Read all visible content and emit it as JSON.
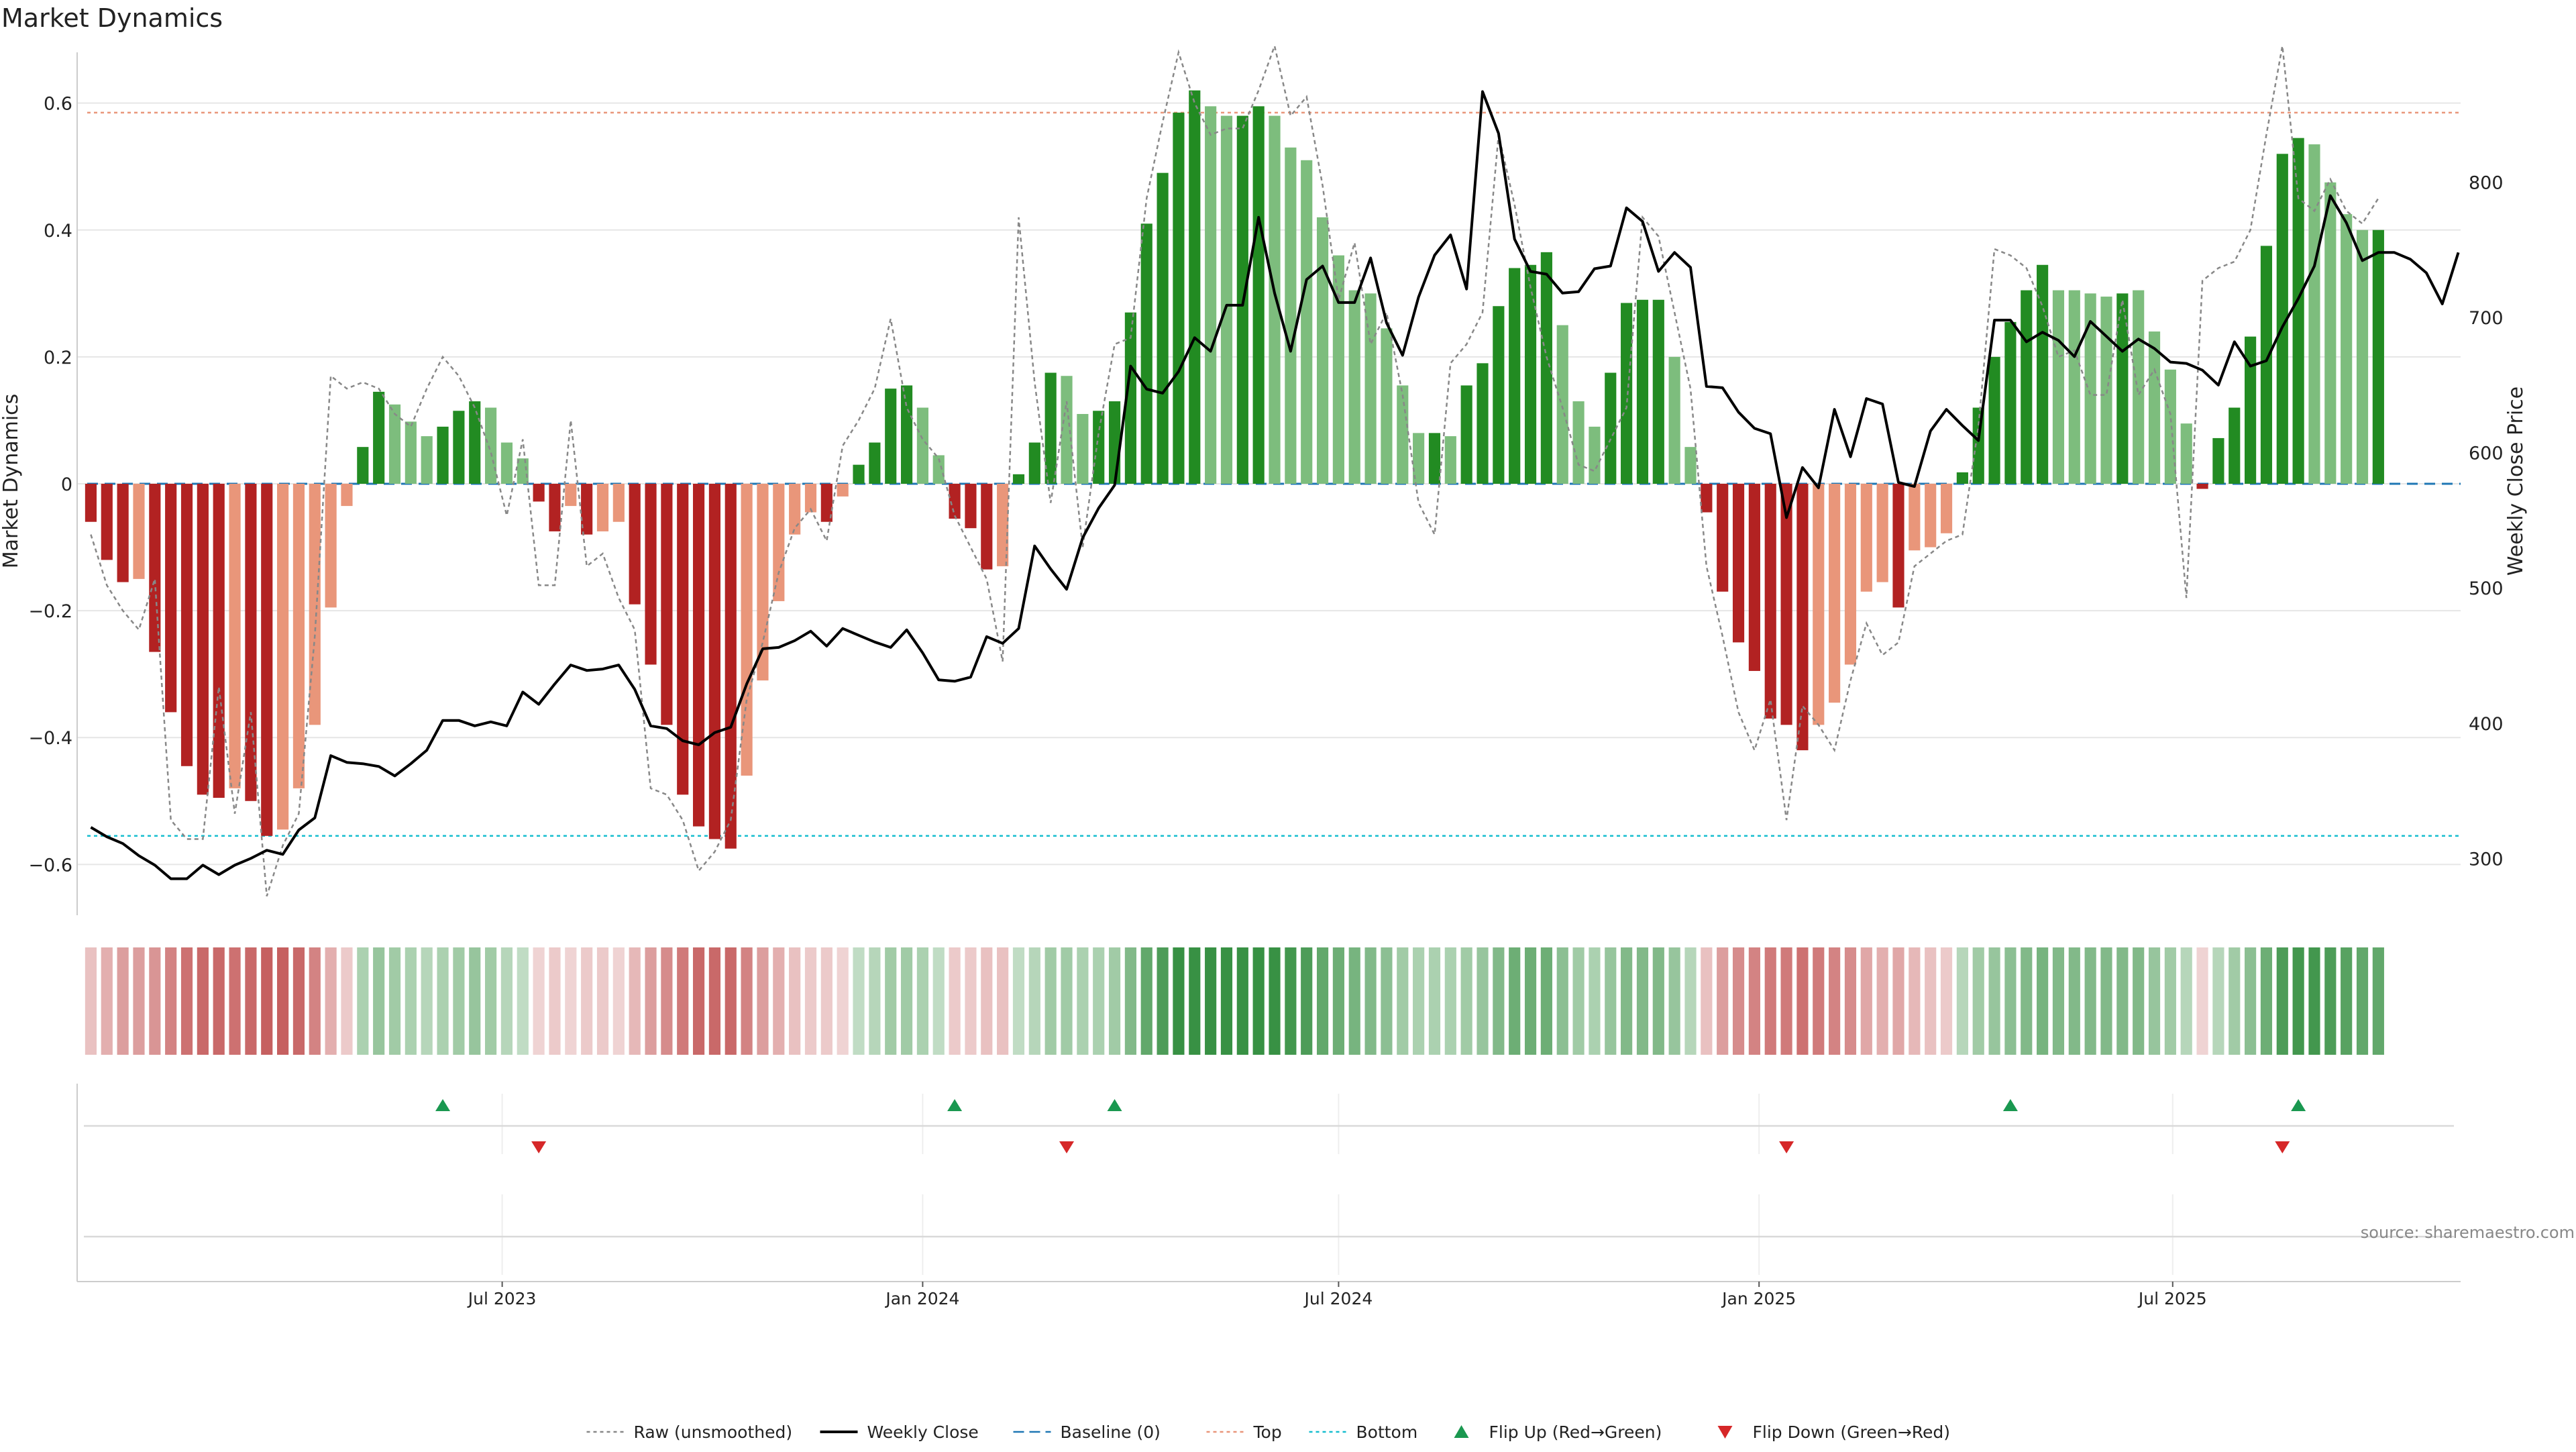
{
  "chart_data": {
    "type": "bar",
    "title": "Market Dynamics",
    "ylabel": "Market Dynamics",
    "y2label": "Weekly Close Price",
    "ylim": [
      -0.68,
      0.68
    ],
    "y2lim": [
      258,
      896
    ],
    "yticks": [
      -0.6,
      -0.4,
      -0.2,
      0,
      0.2,
      0.4,
      0.6
    ],
    "yticklabels": [
      "−0.6",
      "−0.4",
      "−0.2",
      "0",
      "0.2",
      "0.4",
      "0.6"
    ],
    "y2ticks": [
      300,
      400,
      500,
      600,
      700,
      800
    ],
    "y2ticklabels": [
      "300",
      "400",
      "500",
      "600",
      "700",
      "800"
    ],
    "xlim": [
      "2022-12-27",
      "2025-11-04"
    ],
    "xticks": [
      "2023-07-01",
      "2024-01-01",
      "2024-07-01",
      "2025-01-01",
      "2025-07-01"
    ],
    "xticklabels": [
      "Jul 2023",
      "Jan 2024",
      "Jul 2024",
      "Jan 2025",
      "Jul 2025"
    ],
    "bars_start_date": "2023-01-02",
    "bar_interval_days": 7,
    "top_level": 0.585,
    "bottom_level": -0.555,
    "baseline_level": 0,
    "grid": true,
    "legend_position": "bottom-center",
    "colors": {
      "strong_up": "#228b22",
      "weak_up": "#7dbd7d",
      "strong_down": "#b22222",
      "weak_down": "#e9967a",
      "raw_line": "#888888",
      "close_line": "#000000",
      "baseline": "#1f77b4",
      "top": "#e9967a",
      "bottom": "#17becf",
      "flip_up": "#1a9850",
      "flip_down": "#d62728",
      "grid": "#e6e6e6"
    },
    "market_dynamics": [
      -0.06,
      -0.12,
      -0.155,
      -0.15,
      -0.265,
      -0.36,
      -0.445,
      -0.49,
      -0.495,
      -0.48,
      -0.5,
      -0.555,
      -0.545,
      -0.48,
      -0.38,
      -0.195,
      -0.035,
      0.058,
      0.145,
      0.125,
      0.098,
      0.075,
      0.09,
      0.115,
      0.13,
      0.12,
      0.065,
      0.04,
      -0.028,
      -0.075,
      -0.035,
      -0.08,
      -0.075,
      -0.06,
      -0.19,
      -0.285,
      -0.38,
      -0.49,
      -0.54,
      -0.56,
      -0.575,
      -0.46,
      -0.31,
      -0.185,
      -0.08,
      -0.045,
      -0.06,
      -0.02,
      0.03,
      0.065,
      0.15,
      0.155,
      0.12,
      0.045,
      -0.055,
      -0.07,
      -0.135,
      -0.13,
      0.015,
      0.065,
      0.175,
      0.17,
      0.11,
      0.115,
      0.13,
      0.27,
      0.41,
      0.49,
      0.585,
      0.62,
      0.595,
      0.58,
      0.58,
      0.595,
      0.58,
      0.53,
      0.51,
      0.42,
      0.36,
      0.305,
      0.3,
      0.245,
      0.155,
      0.08,
      0.08,
      0.075,
      0.155,
      0.19,
      0.28,
      0.34,
      0.345,
      0.365,
      0.25,
      0.13,
      0.09,
      0.175,
      0.285,
      0.29,
      0.29,
      0.2,
      0.058,
      -0.045,
      -0.17,
      -0.25,
      -0.295,
      -0.37,
      -0.38,
      -0.42,
      -0.38,
      -0.345,
      -0.285,
      -0.17,
      -0.155,
      -0.195,
      -0.105,
      -0.1,
      -0.078,
      0.018,
      0.12,
      0.2,
      0.255,
      0.305,
      0.345,
      0.305,
      0.305,
      0.3,
      0.295,
      0.3,
      0.305,
      0.24,
      0.18,
      0.095,
      -0.008,
      0.072,
      0.12,
      0.232,
      0.375,
      0.52,
      0.545,
      0.535,
      0.475,
      0.425,
      0.4,
      0.4
    ],
    "intensity": [
      "strong",
      "strong",
      "strong",
      "weak",
      "strong",
      "strong",
      "strong",
      "strong",
      "strong",
      "weak",
      "strong",
      "strong",
      "weak",
      "weak",
      "weak",
      "weak",
      "weak",
      "strong",
      "strong",
      "weak",
      "weak",
      "weak",
      "strong",
      "strong",
      "strong",
      "weak",
      "weak",
      "weak",
      "strong",
      "strong",
      "weak",
      "strong",
      "weak",
      "weak",
      "strong",
      "strong",
      "strong",
      "strong",
      "strong",
      "strong",
      "strong",
      "weak",
      "weak",
      "weak",
      "weak",
      "weak",
      "strong",
      "weak",
      "strong",
      "strong",
      "strong",
      "strong",
      "weak",
      "weak",
      "strong",
      "strong",
      "strong",
      "weak",
      "strong",
      "strong",
      "strong",
      "weak",
      "weak",
      "strong",
      "strong",
      "strong",
      "strong",
      "strong",
      "strong",
      "strong",
      "weak",
      "weak",
      "strong",
      "strong",
      "weak",
      "weak",
      "weak",
      "weak",
      "weak",
      "weak",
      "weak",
      "weak",
      "weak",
      "weak",
      "strong",
      "weak",
      "strong",
      "strong",
      "strong",
      "strong",
      "strong",
      "strong",
      "weak",
      "weak",
      "weak",
      "strong",
      "strong",
      "strong",
      "strong",
      "weak",
      "weak",
      "strong",
      "strong",
      "strong",
      "strong",
      "strong",
      "strong",
      "strong",
      "weak",
      "weak",
      "weak",
      "weak",
      "weak",
      "strong",
      "weak",
      "weak",
      "weak",
      "strong",
      "strong",
      "strong",
      "strong",
      "strong",
      "strong",
      "weak",
      "weak",
      "weak",
      "weak",
      "strong",
      "weak",
      "weak",
      "weak",
      "weak",
      "strong",
      "strong",
      "strong",
      "strong",
      "strong",
      "strong",
      "strong",
      "weak",
      "weak",
      "weak",
      "weak",
      "strong"
    ],
    "raw": [
      -0.08,
      -0.16,
      -0.2,
      -0.23,
      -0.15,
      -0.53,
      -0.56,
      -0.56,
      -0.32,
      -0.52,
      -0.36,
      -0.65,
      -0.57,
      -0.52,
      -0.24,
      0.17,
      0.15,
      0.16,
      0.15,
      0.11,
      0.09,
      0.15,
      0.2,
      0.17,
      0.12,
      0.05,
      -0.05,
      0.07,
      -0.16,
      -0.16,
      0.1,
      -0.13,
      -0.11,
      -0.18,
      -0.23,
      -0.48,
      -0.49,
      -0.53,
      -0.61,
      -0.58,
      -0.53,
      -0.34,
      -0.25,
      -0.14,
      -0.07,
      -0.04,
      -0.09,
      0.06,
      0.1,
      0.15,
      0.26,
      0.12,
      0.07,
      0.04,
      -0.05,
      -0.1,
      -0.15,
      -0.28,
      0.42,
      0.16,
      -0.03,
      0.13,
      -0.1,
      0.08,
      0.22,
      0.23,
      0.45,
      0.57,
      0.68,
      0.6,
      0.55,
      0.56,
      0.56,
      0.62,
      0.69,
      0.58,
      0.61,
      0.47,
      0.29,
      0.38,
      0.22,
      0.27,
      0.14,
      -0.03,
      -0.08,
      0.19,
      0.22,
      0.27,
      0.55,
      0.44,
      0.31,
      0.2,
      0.12,
      0.03,
      0.02,
      0.07,
      0.12,
      0.42,
      0.39,
      0.27,
      0.15,
      -0.13,
      -0.24,
      -0.36,
      -0.42,
      -0.34,
      -0.53,
      -0.35,
      -0.38,
      -0.42,
      -0.31,
      -0.22,
      -0.27,
      -0.25,
      -0.13,
      -0.11,
      -0.09,
      -0.08,
      0.09,
      0.37,
      0.36,
      0.34,
      0.28,
      0.2,
      0.21,
      0.14,
      0.14,
      0.29,
      0.14,
      0.18,
      0.11,
      -0.18,
      0.32,
      0.34,
      0.35,
      0.4,
      0.55,
      0.69,
      0.45,
      0.43,
      0.48,
      0.43,
      0.41,
      0.45
    ],
    "weekly_close": [
      323,
      316,
      311,
      302,
      295,
      285,
      285,
      295,
      288,
      295,
      300,
      306,
      303,
      321,
      330,
      376,
      371,
      370,
      368,
      361,
      370,
      380,
      402,
      402,
      398,
      401,
      398,
      423,
      414,
      429,
      443,
      439,
      440,
      443,
      425,
      398,
      396,
      387,
      384,
      393,
      397,
      429,
      455,
      456,
      461,
      468,
      457,
      470,
      465,
      460,
      456,
      469,
      452,
      432,
      431,
      434,
      464,
      459,
      470,
      531,
      514,
      499,
      537,
      559,
      576,
      664,
      647,
      644,
      660,
      685,
      675,
      709,
      709,
      774,
      718,
      675,
      728,
      738,
      711,
      711,
      744,
      696,
      672,
      715,
      746,
      761,
      721,
      867,
      836,
      758,
      734,
      732,
      718,
      719,
      736,
      738,
      781,
      771,
      734,
      748,
      737,
      649,
      648,
      630,
      618,
      614,
      552,
      589,
      574,
      632,
      597,
      640,
      636,
      578,
      575,
      616,
      632,
      620,
      609,
      698,
      698,
      682,
      689,
      683,
      671,
      697,
      686,
      675,
      684,
      677,
      667,
      666,
      661,
      650,
      682,
      664,
      668,
      693,
      714,
      738,
      790,
      770,
      742,
      748,
      748,
      743,
      733,
      710,
      748
    ],
    "strip_levels": [
      0.35,
      0.45,
      0.55,
      0.55,
      0.6,
      0.7,
      0.8,
      0.85,
      0.85,
      0.8,
      0.85,
      0.9,
      0.9,
      0.85,
      0.7,
      0.45,
      0.3,
      0.4,
      0.5,
      0.45,
      0.4,
      0.35,
      0.4,
      0.45,
      0.5,
      0.45,
      0.35,
      0.3,
      0.25,
      0.3,
      0.25,
      0.3,
      0.3,
      0.25,
      0.4,
      0.55,
      0.65,
      0.75,
      0.85,
      0.85,
      0.85,
      0.7,
      0.55,
      0.45,
      0.35,
      0.3,
      0.3,
      0.25,
      0.3,
      0.35,
      0.45,
      0.45,
      0.4,
      0.3,
      0.3,
      0.3,
      0.35,
      0.35,
      0.3,
      0.35,
      0.45,
      0.45,
      0.4,
      0.4,
      0.45,
      0.6,
      0.75,
      0.85,
      0.95,
      0.95,
      0.95,
      0.95,
      0.95,
      0.95,
      0.95,
      0.9,
      0.85,
      0.75,
      0.7,
      0.65,
      0.6,
      0.55,
      0.45,
      0.4,
      0.4,
      0.4,
      0.45,
      0.5,
      0.6,
      0.7,
      0.7,
      0.7,
      0.55,
      0.45,
      0.4,
      0.5,
      0.6,
      0.6,
      0.6,
      0.5,
      0.35,
      0.35,
      0.55,
      0.65,
      0.7,
      0.75,
      0.75,
      0.8,
      0.75,
      0.7,
      0.65,
      0.5,
      0.45,
      0.5,
      0.4,
      0.35,
      0.3,
      0.35,
      0.45,
      0.5,
      0.55,
      0.6,
      0.65,
      0.6,
      0.6,
      0.6,
      0.6,
      0.6,
      0.6,
      0.5,
      0.45,
      0.35,
      0.25,
      0.35,
      0.45,
      0.55,
      0.7,
      0.85,
      0.9,
      0.9,
      0.85,
      0.8,
      0.75,
      0.75
    ],
    "flips_up": [
      "2023-06-05",
      "2024-01-15",
      "2024-03-25",
      "2025-04-21",
      "2025-08-25"
    ],
    "flips_down": [
      "2023-07-17",
      "2024-03-04",
      "2025-01-13",
      "2025-08-18"
    ],
    "source_text": "source: sharemaestro.com",
    "legend": [
      {
        "label": "Raw (unsmoothed)",
        "kind": "line-dotted",
        "color": "#888888"
      },
      {
        "label": "Weekly Close",
        "kind": "line-solid",
        "color": "#000000"
      },
      {
        "label": "Baseline (0)",
        "kind": "line-dashed",
        "color": "#1f77b4"
      },
      {
        "label": "Top",
        "kind": "line-dotted",
        "color": "#e9967a"
      },
      {
        "label": "Bottom",
        "kind": "line-dotted",
        "color": "#17becf"
      },
      {
        "label": "Flip Up (Red→Green)",
        "kind": "triangle-up",
        "color": "#1a9850"
      },
      {
        "label": "Flip Down (Green→Red)",
        "kind": "triangle-down",
        "color": "#d62728"
      }
    ]
  }
}
